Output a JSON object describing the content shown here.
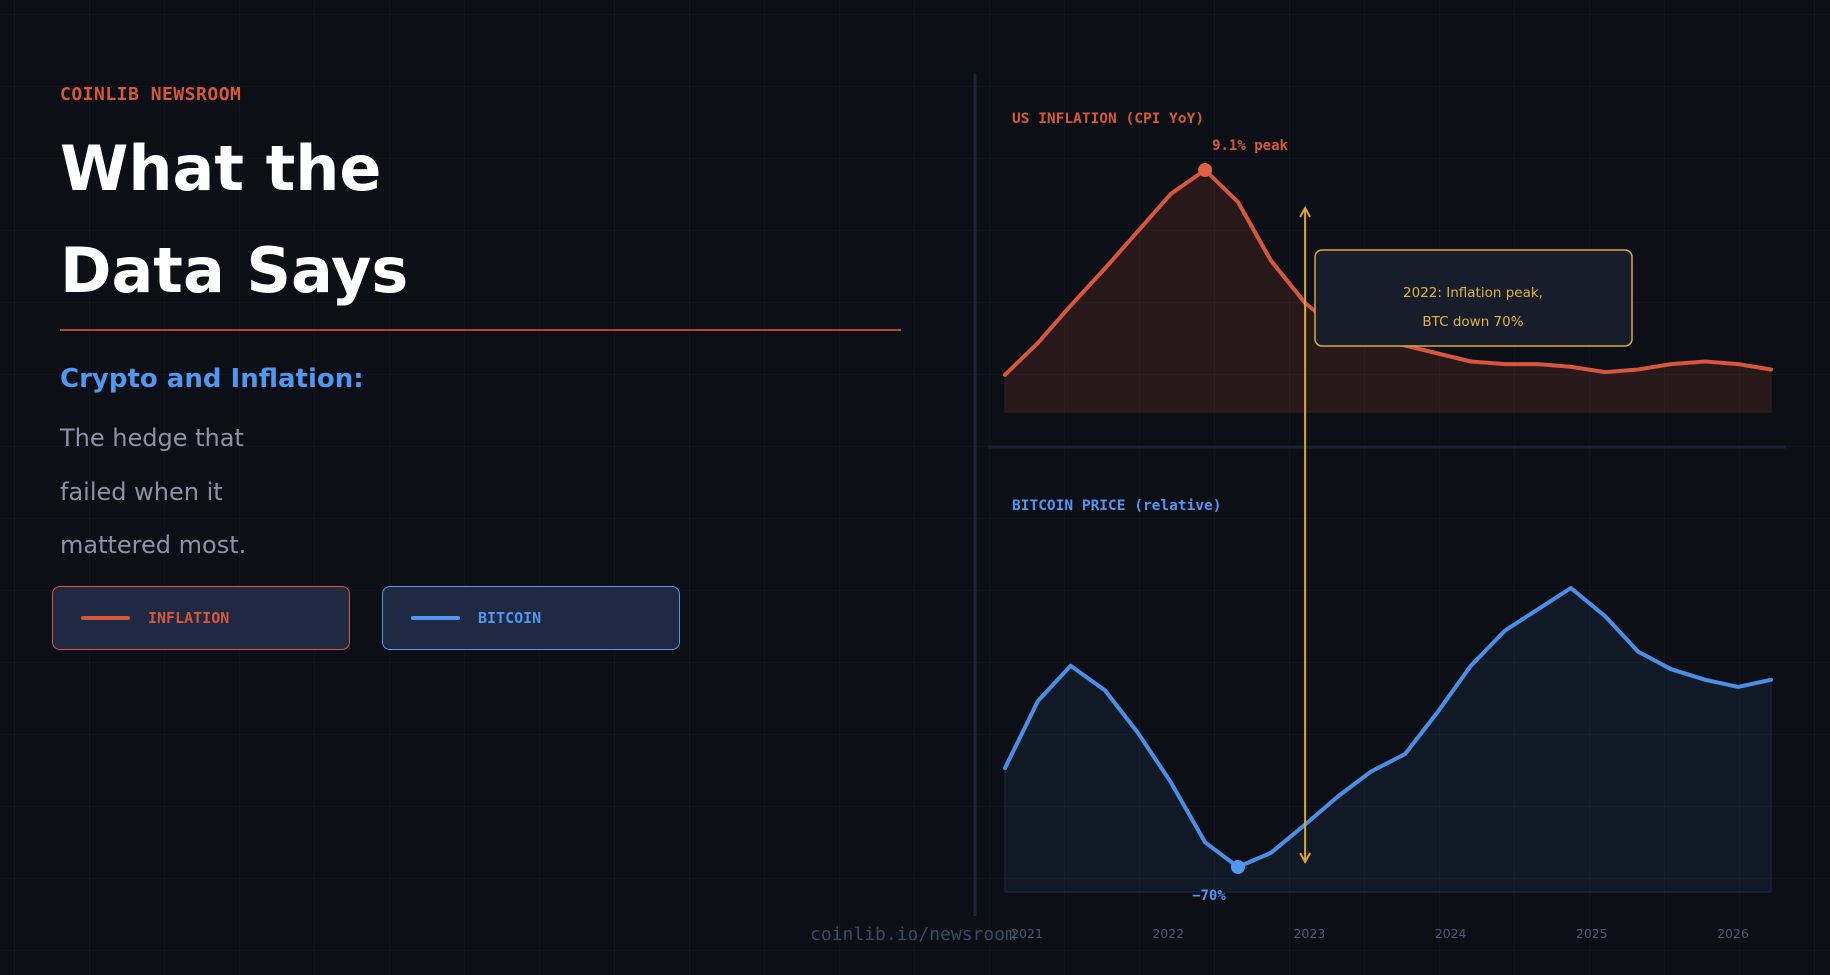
{
  "brand": "COINLIB NEWSROOM",
  "title_lines": [
    "What the",
    "Data Says"
  ],
  "subtitle": "Crypto and Inflation:",
  "tagline_lines": [
    "The hedge that",
    "failed when it",
    "mattered most."
  ],
  "legend": [
    {
      "label": "INFLATION",
      "color": "#d6573c"
    },
    {
      "label": "BITCOIN",
      "color": "#4f97f0"
    }
  ],
  "footer": "coinlib.io/newsroom",
  "colors": {
    "background": "#0c0f16",
    "inflation": "#d6573c",
    "bitcoin": "#4f97f0",
    "annotation": "#e2b240",
    "tick_label": "#4b5a73"
  },
  "chart_data": {
    "type": "line",
    "x_ticks": [
      "2021",
      "2022",
      "2023",
      "2024",
      "2025",
      "2026"
    ],
    "panels": [
      {
        "title": "US INFLATION (CPI YoY)",
        "series_name": "INFLATION",
        "x": [
          2020.87,
          2021.1,
          2021.33,
          2021.57,
          2021.8,
          2022.03,
          2022.27,
          2022.5,
          2022.73,
          2022.97,
          2023.2,
          2023.43,
          2023.67,
          2023.9,
          2024.13,
          2024.37,
          2024.6,
          2024.83,
          2025.07,
          2025.3,
          2025.53,
          2025.77,
          2026.0,
          2026.23
        ],
        "y": [
          1.4,
          2.6,
          4.0,
          5.4,
          6.8,
          8.2,
          9.1,
          7.9,
          5.7,
          4.1,
          3.1,
          2.8,
          2.5,
          2.2,
          1.9,
          1.8,
          1.8,
          1.7,
          1.5,
          1.6,
          1.8,
          1.9,
          1.8,
          1.6
        ],
        "peak": {
          "x": 2022.27,
          "y": 9.1,
          "label": "9.1% peak"
        }
      },
      {
        "title": "BITCOIN PRICE (relative)",
        "series_name": "BITCOIN",
        "x": [
          2020.87,
          2021.1,
          2021.33,
          2021.57,
          2021.8,
          2022.03,
          2022.27,
          2022.5,
          2022.73,
          2022.97,
          2023.2,
          2023.43,
          2023.67,
          2023.9,
          2024.13,
          2024.37,
          2024.6,
          2024.83,
          2025.07,
          2025.3,
          2025.53,
          2025.77,
          2026.0,
          2026.23
        ],
        "y": [
          35,
          54,
          64,
          57,
          45,
          31,
          14,
          7,
          11,
          19,
          27,
          34,
          39,
          51,
          64,
          74,
          80,
          86,
          78,
          68,
          63,
          60,
          58,
          60
        ],
        "trough": {
          "x": 2022.5,
          "y": 7,
          "label": "−70%"
        }
      }
    ],
    "annotation": {
      "x": 2022.97,
      "text_lines": [
        "2022: Inflation peak,",
        "BTC down 70%"
      ]
    }
  }
}
